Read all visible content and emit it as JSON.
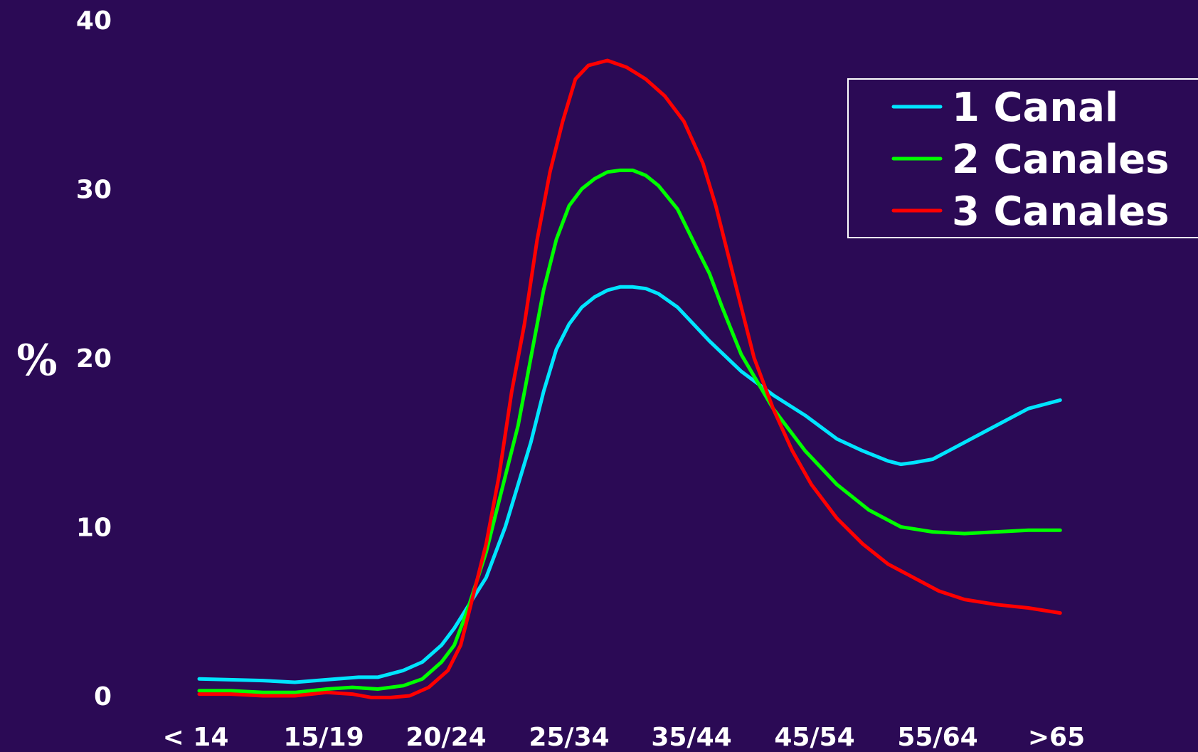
{
  "chart_data": {
    "type": "line",
    "ylabel": "%",
    "ylim": [
      0,
      40
    ],
    "yticks": [
      "0",
      "10",
      "20",
      "30",
      "40"
    ],
    "categories": [
      "< 14",
      "15/19",
      "20/24",
      "25/34",
      "35/44",
      "45/54",
      "55/64",
      ">65"
    ],
    "grid": false,
    "legend_position": "top-right",
    "series": [
      {
        "name": "1 Canal",
        "color": "#00e5ff",
        "points": [
          [
            0.0,
            1.0
          ],
          [
            0.5,
            0.9
          ],
          [
            0.75,
            0.8
          ],
          [
            1.0,
            0.95
          ],
          [
            1.25,
            1.1
          ],
          [
            1.4,
            1.1
          ],
          [
            1.6,
            1.5
          ],
          [
            1.75,
            2.0
          ],
          [
            1.9,
            3.0
          ],
          [
            2.0,
            4.0
          ],
          [
            2.1,
            5.2
          ],
          [
            2.25,
            7.0
          ],
          [
            2.4,
            10.0
          ],
          [
            2.5,
            12.5
          ],
          [
            2.6,
            15.0
          ],
          [
            2.7,
            18.0
          ],
          [
            2.8,
            20.5
          ],
          [
            2.9,
            22.0
          ],
          [
            3.0,
            23.0
          ],
          [
            3.1,
            23.6
          ],
          [
            3.2,
            24.0
          ],
          [
            3.3,
            24.2
          ],
          [
            3.4,
            24.2
          ],
          [
            3.5,
            24.1
          ],
          [
            3.6,
            23.8
          ],
          [
            3.75,
            23.0
          ],
          [
            3.9,
            21.8
          ],
          [
            4.0,
            21.0
          ],
          [
            4.25,
            19.2
          ],
          [
            4.5,
            17.8
          ],
          [
            4.75,
            16.6
          ],
          [
            5.0,
            15.2
          ],
          [
            5.2,
            14.5
          ],
          [
            5.4,
            13.9
          ],
          [
            5.5,
            13.7
          ],
          [
            5.6,
            13.8
          ],
          [
            5.75,
            14.0
          ],
          [
            5.9,
            14.6
          ],
          [
            6.0,
            15.0
          ],
          [
            6.25,
            16.0
          ],
          [
            6.5,
            17.0
          ],
          [
            6.75,
            17.5
          ]
        ]
      },
      {
        "name": "2 Canales",
        "color": "#00ff00",
        "points": [
          [
            0.0,
            0.3
          ],
          [
            0.25,
            0.3
          ],
          [
            0.5,
            0.2
          ],
          [
            0.75,
            0.2
          ],
          [
            1.0,
            0.4
          ],
          [
            1.2,
            0.5
          ],
          [
            1.4,
            0.4
          ],
          [
            1.6,
            0.6
          ],
          [
            1.75,
            1.0
          ],
          [
            1.9,
            2.0
          ],
          [
            2.0,
            3.0
          ],
          [
            2.1,
            5.0
          ],
          [
            2.25,
            8.5
          ],
          [
            2.4,
            13.0
          ],
          [
            2.5,
            16.0
          ],
          [
            2.6,
            20.0
          ],
          [
            2.7,
            24.0
          ],
          [
            2.8,
            27.0
          ],
          [
            2.9,
            29.0
          ],
          [
            3.0,
            30.0
          ],
          [
            3.1,
            30.6
          ],
          [
            3.2,
            31.0
          ],
          [
            3.3,
            31.1
          ],
          [
            3.4,
            31.1
          ],
          [
            3.5,
            30.8
          ],
          [
            3.6,
            30.2
          ],
          [
            3.75,
            28.8
          ],
          [
            3.9,
            26.5
          ],
          [
            4.0,
            25.0
          ],
          [
            4.1,
            23.0
          ],
          [
            4.25,
            20.2
          ],
          [
            4.5,
            17.0
          ],
          [
            4.75,
            14.5
          ],
          [
            5.0,
            12.5
          ],
          [
            5.25,
            11.0
          ],
          [
            5.5,
            10.0
          ],
          [
            5.75,
            9.7
          ],
          [
            6.0,
            9.6
          ],
          [
            6.25,
            9.7
          ],
          [
            6.5,
            9.8
          ],
          [
            6.75,
            9.8
          ]
        ]
      },
      {
        "name": "3 Canales",
        "color": "#ff0000",
        "points": [
          [
            0.0,
            0.1
          ],
          [
            0.25,
            0.1
          ],
          [
            0.5,
            0.0
          ],
          [
            0.75,
            0.0
          ],
          [
            1.0,
            0.2
          ],
          [
            1.2,
            0.1
          ],
          [
            1.35,
            -0.1
          ],
          [
            1.5,
            -0.1
          ],
          [
            1.65,
            0.0
          ],
          [
            1.8,
            0.5
          ],
          [
            1.95,
            1.5
          ],
          [
            2.05,
            3.0
          ],
          [
            2.15,
            6.0
          ],
          [
            2.25,
            9.0
          ],
          [
            2.35,
            13.0
          ],
          [
            2.45,
            18.0
          ],
          [
            2.55,
            22.0
          ],
          [
            2.65,
            27.0
          ],
          [
            2.75,
            31.0
          ],
          [
            2.85,
            34.0
          ],
          [
            2.95,
            36.5
          ],
          [
            3.05,
            37.3
          ],
          [
            3.2,
            37.6
          ],
          [
            3.35,
            37.2
          ],
          [
            3.5,
            36.5
          ],
          [
            3.65,
            35.5
          ],
          [
            3.8,
            34.0
          ],
          [
            3.95,
            31.5
          ],
          [
            4.05,
            29.0
          ],
          [
            4.15,
            26.0
          ],
          [
            4.25,
            23.0
          ],
          [
            4.35,
            20.0
          ],
          [
            4.5,
            17.0
          ],
          [
            4.65,
            14.5
          ],
          [
            4.8,
            12.5
          ],
          [
            5.0,
            10.5
          ],
          [
            5.2,
            9.0
          ],
          [
            5.4,
            7.8
          ],
          [
            5.6,
            7.0
          ],
          [
            5.8,
            6.2
          ],
          [
            6.0,
            5.7
          ],
          [
            6.25,
            5.4
          ],
          [
            6.5,
            5.2
          ],
          [
            6.75,
            4.9
          ]
        ]
      }
    ]
  }
}
